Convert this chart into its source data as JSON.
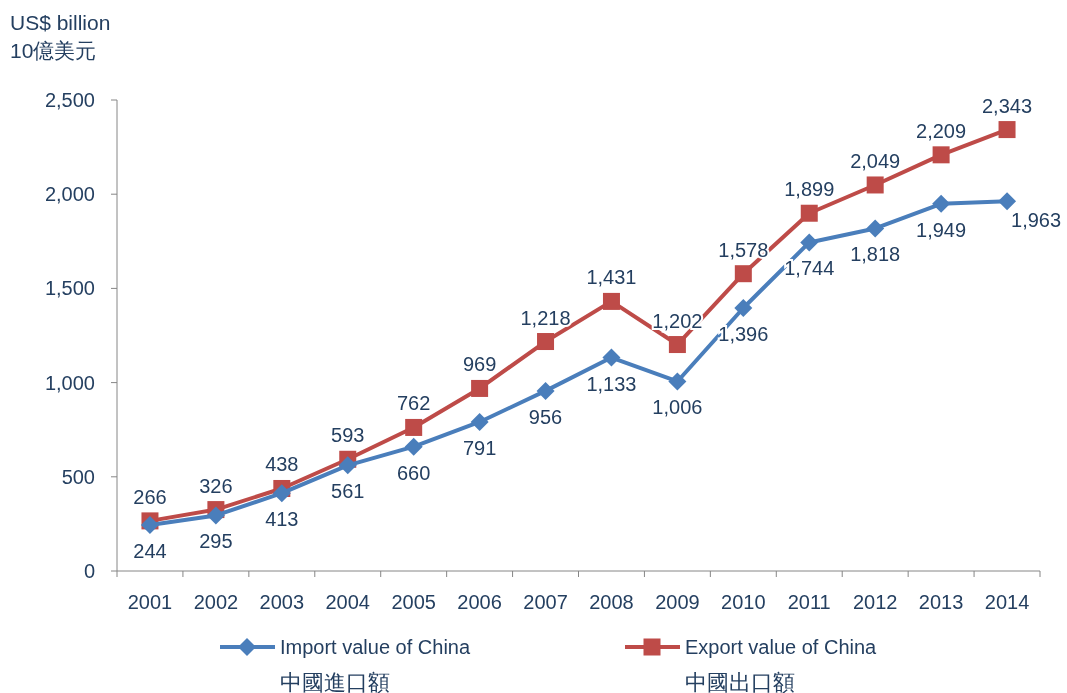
{
  "chart_data": {
    "type": "line",
    "ylabel": "US$ billion\n10億美元",
    "categories": [
      "2001",
      "2002",
      "2003",
      "2004",
      "2005",
      "2006",
      "2007",
      "2008",
      "2009",
      "2010",
      "2011",
      "2012",
      "2013",
      "2014"
    ],
    "series": [
      {
        "name": "Import value of China\n中國進口額",
        "color": "#4a7ebb",
        "marker": "diamond",
        "values": [
          244,
          295,
          413,
          561,
          660,
          791,
          956,
          1133,
          1006,
          1396,
          1744,
          1818,
          1949,
          1963
        ],
        "value_labels": [
          "244",
          "295",
          "413",
          "561",
          "660",
          "791",
          "956",
          "1,133",
          "1,006",
          "1,396",
          "1,744",
          "1,818",
          "1,949",
          "1,963"
        ]
      },
      {
        "name": "Export value of China\n中國出口額",
        "color": "#be4b48",
        "marker": "square",
        "values": [
          266,
          326,
          438,
          593,
          762,
          969,
          1218,
          1431,
          1202,
          1578,
          1899,
          2049,
          2209,
          2343
        ],
        "value_labels": [
          "266",
          "326",
          "438",
          "593",
          "762",
          "969",
          "1,218",
          "1,431",
          "1,202",
          "1,578",
          "1,899",
          "2,049",
          "2,209",
          "2,343"
        ]
      }
    ],
    "ylim": [
      0,
      2500
    ],
    "yticks": [
      0,
      500,
      {
        "value": 1000,
        "label": "1,000"
      },
      {
        "value": 1500,
        "label": "1,500"
      },
      {
        "value": 2000,
        "label": "2,000"
      },
      {
        "value": 2500,
        "label": "2,500"
      }
    ],
    "grid": false,
    "legend": "bottom",
    "line_style": "solid"
  }
}
